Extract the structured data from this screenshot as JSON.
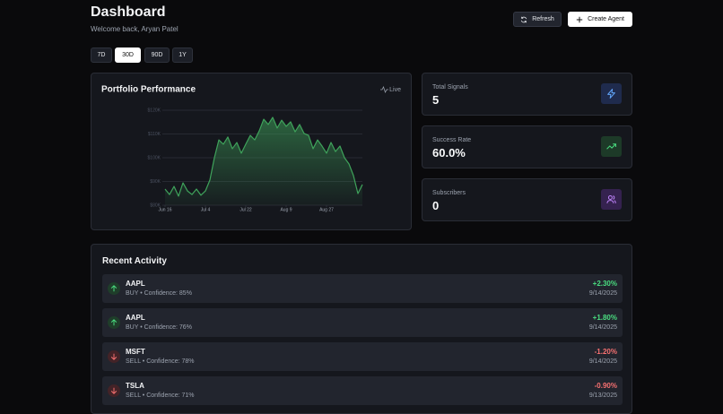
{
  "header": {
    "title": "Dashboard",
    "subtitle": "Welcome back, Aryan Patel",
    "buttons": [
      "Refresh",
      "Create Agent"
    ]
  },
  "range_tabs": [
    "7D",
    "30D",
    "90D",
    "1Y"
  ],
  "chart_data": {
    "type": "area",
    "title": "Portfolio Performance",
    "badge": "Live",
    "x": [
      0,
      2,
      4,
      6,
      8,
      10,
      12,
      14,
      16,
      18,
      20,
      22,
      24,
      26,
      28,
      30,
      32,
      34,
      36,
      38,
      40,
      42,
      44,
      46,
      48,
      50,
      52,
      54,
      56,
      58,
      60,
      62,
      64,
      66,
      68,
      70,
      72,
      74,
      76,
      78,
      80,
      82,
      84,
      86,
      88
    ],
    "values": [
      86800,
      84500,
      87900,
      83800,
      89400,
      86000,
      84500,
      86800,
      84200,
      86000,
      90600,
      100000,
      107500,
      105700,
      108700,
      103800,
      106400,
      101900,
      105700,
      109400,
      107500,
      111300,
      116200,
      114000,
      117000,
      112500,
      115800,
      113200,
      115100,
      110900,
      114000,
      110200,
      109400,
      103800,
      107500,
      104900,
      101900,
      106400,
      102600,
      104900,
      100000,
      97400,
      92500,
      84900,
      88700
    ],
    "color": "#3fa35b",
    "xlim": [
      0,
      88
    ],
    "xticks": [
      {
        "value": 0,
        "label": "Jun 16"
      },
      {
        "value": 18,
        "label": "Jul 4"
      },
      {
        "value": 36,
        "label": "Jul 22"
      },
      {
        "value": 54,
        "label": "Aug 9"
      },
      {
        "value": 72,
        "label": "Aug 27"
      }
    ],
    "ylim": [
      80000,
      120000
    ],
    "yticks": [
      {
        "value": 80000,
        "label": "$80K"
      },
      {
        "value": 90000,
        "label": "$90K"
      },
      {
        "value": 100000,
        "label": "$100K"
      },
      {
        "value": 110000,
        "label": "$110K"
      },
      {
        "value": 120000,
        "label": "$120K"
      }
    ],
    "grid": true
  },
  "stats": [
    {
      "label": "Total Signals",
      "value": "5"
    },
    {
      "label": "Success Rate",
      "value": "60.0%"
    },
    {
      "label": "Subscribers",
      "value": "0"
    }
  ],
  "activity": {
    "title": "Recent Activity",
    "items": [
      {
        "symbol": "AAPL",
        "detail": "BUY • Confidence: 85%",
        "change": "+2.30%",
        "date": "9/14/2025"
      },
      {
        "symbol": "AAPL",
        "detail": "BUY • Confidence: 76%",
        "change": "+1.80%",
        "date": "9/14/2025"
      },
      {
        "symbol": "MSFT",
        "detail": "SELL • Confidence: 78%",
        "change": "-1.20%",
        "date": "9/14/2025"
      },
      {
        "symbol": "TSLA",
        "detail": "SELL • Confidence: 71%",
        "change": "-0.90%",
        "date": "9/13/2025"
      }
    ]
  }
}
